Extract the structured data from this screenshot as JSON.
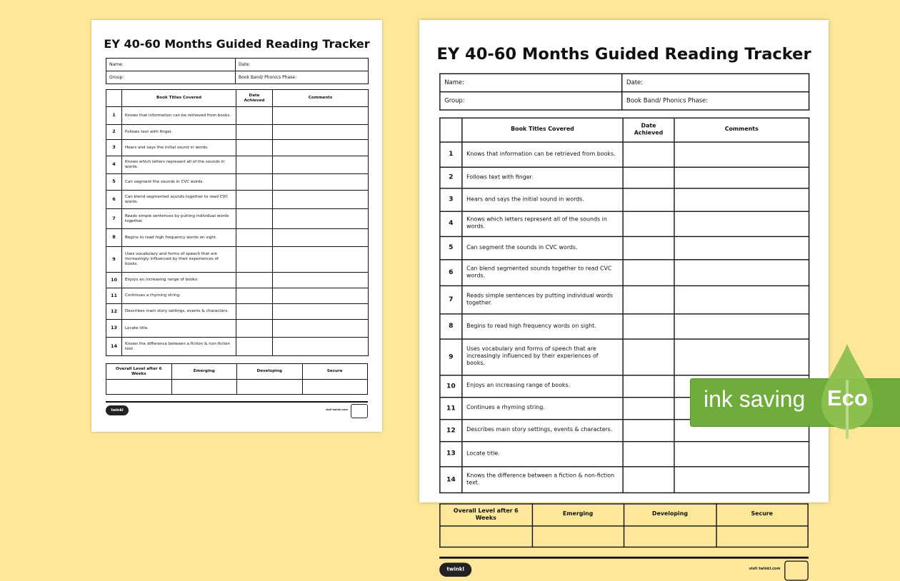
{
  "title": "EY 40-60 Months Guided Reading Tracker",
  "info": {
    "name": "Name:",
    "date": "Date:",
    "group": "Group:",
    "book_band": "Book Band/ Phonics Phase:"
  },
  "table": {
    "headers": [
      "",
      "Book Titles Covered",
      "Date Achieved",
      "Comments"
    ],
    "rows": [
      {
        "num": "1",
        "text": "Knows that information can be retrieved from books."
      },
      {
        "num": "2",
        "text": "Follows text with finger."
      },
      {
        "num": "3",
        "text": "Hears and says the initial sound in words."
      },
      {
        "num": "4",
        "text": "Knows which letters represent all of the sounds in words."
      },
      {
        "num": "5",
        "text": "Can segment the sounds in CVC words."
      },
      {
        "num": "6",
        "text": "Can blend segmented sounds together to read CVC words."
      },
      {
        "num": "7",
        "text": "Reads simple sentences by putting individual words together."
      },
      {
        "num": "8",
        "text": "Begins to read high frequency words on sight."
      },
      {
        "num": "9",
        "text": "Uses vocabulary and forms of speech that are increasingly influenced by their experiences of books."
      },
      {
        "num": "10",
        "text": "Enjoys an increasing range of books."
      },
      {
        "num": "11",
        "text": "Continues a rhyming string."
      },
      {
        "num": "12",
        "text": "Describes main story settings, events & characters."
      },
      {
        "num": "13",
        "text": "Locate title."
      },
      {
        "num": "14",
        "text": "Knows the difference between a fiction & non-fiction text."
      }
    ]
  },
  "levels": {
    "headers": [
      "Overall Level after 6 Weeks",
      "Emerging",
      "Developing",
      "Secure"
    ]
  },
  "footer": {
    "logo": "twinkl",
    "visit": "visit twinkl.com"
  },
  "eco_badge": {
    "text": "ink saving",
    "label": "Eco",
    "color": "#6fac3b",
    "drop_color": "#8dc04e"
  },
  "background_color": "#fce79b"
}
